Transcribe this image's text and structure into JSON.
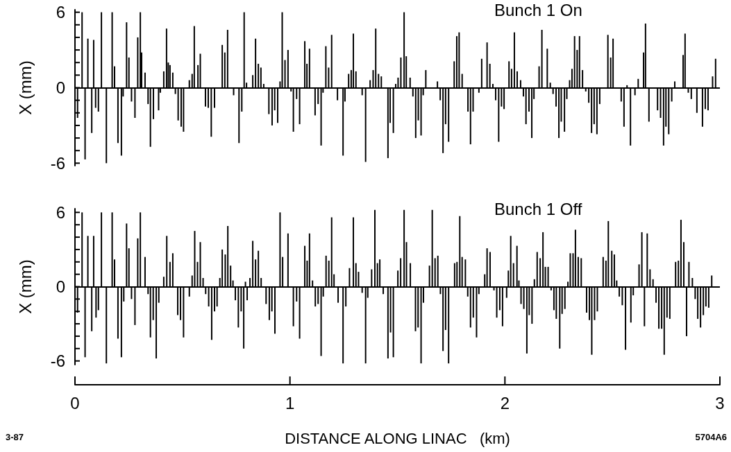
{
  "chart_data": [
    {
      "type": "bar",
      "title": "Bunch 1 On",
      "ylabel": "X (mm)",
      "color": "#000000",
      "tick_labels": "y",
      "xlim": [
        0,
        3
      ],
      "ylim": [
        -6.2,
        6.2
      ],
      "yticks": [
        -6,
        {
          "value": -5,
          "label": null
        },
        {
          "value": -4,
          "label": null
        },
        {
          "value": -3,
          "label": null
        },
        {
          "value": -2,
          "label": null
        },
        {
          "value": -1,
          "label": null
        },
        0,
        {
          "value": 1,
          "label": null
        },
        {
          "value": 2,
          "label": null
        },
        {
          "value": 3,
          "label": null
        },
        {
          "value": 4,
          "label": null
        },
        {
          "value": 5,
          "label": null
        },
        6
      ],
      "ref_lines": [
        {
          "axis": "y",
          "value": 0
        }
      ],
      "x": [
        0.012,
        0.033,
        0.047,
        0.06,
        0.078,
        0.087,
        0.096,
        0.109,
        0.123,
        0.146,
        0.173,
        0.184,
        0.2,
        0.216,
        0.224,
        0.24,
        0.251,
        0.263,
        0.279,
        0.292,
        0.304,
        0.31,
        0.326,
        0.34,
        0.351,
        0.365,
        0.389,
        0.397,
        0.413,
        0.426,
        0.434,
        0.442,
        0.455,
        0.467,
        0.48,
        0.494,
        0.505,
        0.532,
        0.545,
        0.555,
        0.572,
        0.583,
        0.607,
        0.62,
        0.634,
        0.649,
        0.685,
        0.697,
        0.71,
        0.738,
        0.763,
        0.776,
        0.787,
        0.798,
        0.827,
        0.84,
        0.853,
        0.865,
        0.878,
        0.902,
        0.917,
        0.929,
        0.943,
        0.954,
        0.964,
        0.977,
        0.991,
        1.005,
        1.016,
        1.031,
        1.045,
        1.069,
        1.079,
        1.091,
        1.117,
        1.131,
        1.145,
        1.154,
        1.167,
        1.18,
        1.194,
        1.221,
        1.247,
        1.256,
        1.273,
        1.285,
        1.295,
        1.307,
        1.336,
        1.352,
        1.373,
        1.387,
        1.399,
        1.412,
        1.425,
        1.456,
        1.466,
        1.481,
        1.492,
        1.503,
        1.516,
        1.531,
        1.541,
        1.559,
        1.572,
        1.585,
        1.597,
        1.61,
        1.62,
        1.632,
        1.686,
        1.699,
        1.712,
        1.724,
        1.738,
        1.764,
        1.776,
        1.787,
        1.801,
        1.828,
        1.84,
        1.852,
        1.879,
        1.892,
        1.917,
        1.93,
        1.944,
        1.957,
        1.971,
        1.984,
        1.996,
        2.019,
        2.031,
        2.044,
        2.057,
        2.073,
        2.086,
        2.098,
        2.112,
        2.125,
        2.135,
        2.159,
        2.172,
        2.197,
        2.211,
        2.224,
        2.238,
        2.251,
        2.262,
        2.277,
        2.288,
        2.301,
        2.312,
        2.324,
        2.336,
        2.347,
        2.361,
        2.376,
        2.39,
        2.403,
        2.415,
        2.428,
        2.441,
        2.479,
        2.492,
        2.503,
        2.541,
        2.554,
        2.568,
        2.584,
        2.605,
        2.62,
        2.645,
        2.654,
        2.67,
        2.71,
        2.724,
        2.738,
        2.749,
        2.762,
        2.776,
        2.79,
        2.829,
        2.838,
        2.853,
        2.867,
        2.893,
        2.919,
        2.932,
        2.945,
        2.966,
        2.98
      ],
      "values": [
        -2.4,
        6,
        -5.7,
        3.9,
        -3.6,
        3.8,
        -1.6,
        -1.9,
        6,
        -6,
        6,
        1.7,
        -4.4,
        -5.4,
        -0.7,
        5.2,
        2.4,
        -1.1,
        -2.4,
        4,
        6,
        2.8,
        1.2,
        -1.3,
        -4.7,
        -2.5,
        -1.8,
        -0.4,
        1.3,
        4.7,
        2,
        1.8,
        1.2,
        -0.5,
        -2.6,
        -3.1,
        -3.5,
        0.6,
        1.1,
        4.9,
        1.8,
        2.7,
        -1.5,
        -1.6,
        -3.9,
        -1.6,
        3.4,
        2.8,
        4.6,
        -0.6,
        -4.4,
        -1.9,
        6,
        0.4,
        1,
        3.9,
        1.9,
        1.6,
        0.3,
        -2.1,
        -3,
        -1.8,
        -2.8,
        0.5,
        6,
        2.2,
        3,
        -0.3,
        -3.5,
        -0.9,
        -2.9,
        3.7,
        1.9,
        3.1,
        -2.2,
        -1.3,
        -4.6,
        -0.4,
        3.3,
        1.6,
        4.2,
        -1,
        -5.4,
        -1.1,
        1.1,
        1.4,
        4.3,
        1.3,
        -0.6,
        -5.9,
        0.6,
        1.4,
        4.7,
        1.1,
        0.9,
        -5.6,
        -2.8,
        -3.6,
        0.3,
        0.8,
        2.4,
        6,
        2.5,
        0.8,
        -0.7,
        -4,
        -2.6,
        -3.8,
        -0.6,
        1.4,
        0.5,
        -1,
        -5.2,
        -2.9,
        -4.3,
        2.1,
        4.1,
        4.4,
        1.1,
        -1.9,
        -4.5,
        -1.9,
        -0.4,
        2.3,
        3.6,
        1.9,
        0.3,
        -1,
        -4.3,
        -1.5,
        -1.7,
        2.1,
        1.5,
        4.4,
        1.3,
        0.6,
        -0.7,
        -2.9,
        -1.9,
        -4,
        -0.9,
        1.7,
        4.6,
        3.1,
        0.4,
        -0.5,
        -1.5,
        -4,
        -2.7,
        -3.5,
        -0.9,
        0.6,
        1.5,
        4.1,
        3,
        4.1,
        1.4,
        -0.3,
        -1.2,
        -3.6,
        -2.9,
        -3.7,
        -1.3,
        4.2,
        2.4,
        3.9,
        -1.1,
        -3.1,
        0.2,
        -4.6,
        -0.6,
        0.7,
        2.8,
        5.1,
        -2.7,
        -1.8,
        -2.4,
        -4.6,
        -3.1,
        -3.7,
        -1.1,
        0.5,
        2.6,
        4.3,
        -0.4,
        -0.9,
        -2,
        -3.1,
        -1.7,
        -1.8,
        0.9,
        2.3
      ]
    },
    {
      "type": "bar",
      "title": "Bunch 1 Off",
      "ylabel": "X (mm)",
      "xlabel": "DISTANCE ALONG LINAC   (km)",
      "color": "#000000",
      "xlim": [
        0,
        3
      ],
      "xticks": [
        0,
        1,
        2,
        3
      ],
      "ylim": [
        -6.3,
        6.3
      ],
      "yticks": [
        -6,
        {
          "value": -5,
          "label": null
        },
        {
          "value": -4,
          "label": null
        },
        {
          "value": -3,
          "label": null
        },
        {
          "value": -2,
          "label": null
        },
        {
          "value": -1,
          "label": null
        },
        0,
        {
          "value": 1,
          "label": null
        },
        {
          "value": 2,
          "label": null
        },
        {
          "value": 3,
          "label": null
        },
        {
          "value": 4,
          "label": null
        },
        {
          "value": 5,
          "label": null
        },
        6
      ],
      "ref_lines": [
        {
          "axis": "y",
          "value": 0
        }
      ],
      "annotations": [
        "3-87",
        "5704A6"
      ],
      "x": [
        0.012,
        0.033,
        0.047,
        0.06,
        0.078,
        0.087,
        0.098,
        0.109,
        0.123,
        0.146,
        0.173,
        0.184,
        0.2,
        0.216,
        0.227,
        0.24,
        0.251,
        0.263,
        0.279,
        0.292,
        0.304,
        0.326,
        0.34,
        0.351,
        0.364,
        0.378,
        0.39,
        0.413,
        0.427,
        0.442,
        0.455,
        0.478,
        0.491,
        0.505,
        0.532,
        0.545,
        0.557,
        0.57,
        0.583,
        0.596,
        0.608,
        0.622,
        0.636,
        0.649,
        0.661,
        0.674,
        0.685,
        0.699,
        0.711,
        0.724,
        0.735,
        0.746,
        0.76,
        0.773,
        0.785,
        0.793,
        0.801,
        0.814,
        0.827,
        0.84,
        0.853,
        0.866,
        0.889,
        0.904,
        0.916,
        0.93,
        0.942,
        0.954,
        0.966,
        0.991,
        1.016,
        1.031,
        1.045,
        1.069,
        1.08,
        1.091,
        1.105,
        1.118,
        1.131,
        1.145,
        1.155,
        1.168,
        1.181,
        1.194,
        1.205,
        1.224,
        1.247,
        1.26,
        1.277,
        1.295,
        1.307,
        1.319,
        1.336,
        1.352,
        1.362,
        1.38,
        1.395,
        1.407,
        1.418,
        1.434,
        1.456,
        1.468,
        1.481,
        1.502,
        1.515,
        1.531,
        1.542,
        1.56,
        1.584,
        1.596,
        1.61,
        1.621,
        1.649,
        1.662,
        1.675,
        1.688,
        1.7,
        1.712,
        1.724,
        1.738,
        1.766,
        1.777,
        1.79,
        1.801,
        1.816,
        1.827,
        1.84,
        1.853,
        1.868,
        1.879,
        1.906,
        1.917,
        1.931,
        1.949,
        1.962,
        1.976,
        1.989,
        2.008,
        2.016,
        2.027,
        2.04,
        2.056,
        2.065,
        2.075,
        2.088,
        2.102,
        2.113,
        2.126,
        2.137,
        2.15,
        2.164,
        2.177,
        2.188,
        2.201,
        2.215,
        2.228,
        2.239,
        2.255,
        2.266,
        2.279,
        2.293,
        2.304,
        2.317,
        2.328,
        2.341,
        2.355,
        2.38,
        2.393,
        2.404,
        2.417,
        2.43,
        2.457,
        2.47,
        2.481,
        2.497,
        2.509,
        2.52,
        2.532,
        2.546,
        2.561,
        2.586,
        2.597,
        2.624,
        2.637,
        2.649,
        2.662,
        2.675,
        2.689,
        2.703,
        2.716,
        2.729,
        2.741,
        2.754,
        2.767,
        2.794,
        2.807,
        2.819,
        2.832,
        2.845,
        2.856,
        2.872,
        2.885,
        2.897,
        2.91,
        2.923,
        2.935,
        2.948,
        2.962
      ],
      "values": [
        -2.1,
        6,
        -5.7,
        4.1,
        -3.6,
        4.1,
        -2.5,
        -1.9,
        6,
        -6.2,
        6,
        2.2,
        -4.2,
        -5.7,
        -1.2,
        5.1,
        3.1,
        -1,
        -3.1,
        3.9,
        6,
        2.4,
        -0.6,
        -4.1,
        -2.7,
        -5.8,
        -1.3,
        0.8,
        4.1,
        2,
        2.7,
        -2.3,
        -2.7,
        -4.1,
        -0.8,
        0.9,
        4.5,
        2,
        3.6,
        0.7,
        -0.6,
        -1.6,
        -4.3,
        -2,
        -1.6,
        0.7,
        3,
        2.6,
        4.9,
        1.7,
        0.5,
        -1.1,
        -3.3,
        -2,
        -5,
        0.4,
        -1.1,
        0.7,
        3.7,
        2.2,
        2.9,
        0.7,
        -1.4,
        -2.7,
        -2,
        -3.8,
        null,
        6,
        2.4,
        4.3,
        -3.2,
        -1.2,
        -4.2,
        3.3,
        2.1,
        4.3,
        0.5,
        -1.6,
        -1.4,
        -5.6,
        -0.8,
        2.5,
        2.1,
        5.6,
        1,
        -1.3,
        -6.2,
        -1.6,
        1.5,
        5.6,
        1.9,
        1.2,
        -0.5,
        -6.2,
        -0.9,
        1.4,
        6.2,
        1.9,
        2.2,
        -0.6,
        -5.8,
        -3.7,
        -5.7,
        1.3,
        2.3,
        6.2,
        3.6,
        1.9,
        -3.6,
        -3.3,
        -6.2,
        -1.3,
        1.7,
        6.2,
        2.3,
        2.5,
        -0.6,
        -5.2,
        -3.5,
        -6.2,
        1.9,
        2,
        5.7,
        2.4,
        2.2,
        -0.8,
        -3.3,
        -2.5,
        -4.1,
        -0.6,
        1,
        3.1,
        2.8,
        -0.3,
        -2.5,
        -1.9,
        -3.2,
        -0.9,
        1.3,
        4.1,
        1.9,
        3.3,
        0.5,
        -1.4,
        -1.8,
        -5.4,
        -2.3,
        -3,
        0.6,
        2.8,
        2.3,
        4.4,
        1.6,
        1.6,
        -0.3,
        -1.9,
        -2.6,
        -5,
        -2.2,
        -1.8,
        0.4,
        2.7,
        2.7,
        4.6,
        2.4,
        2.3,
        -2.1,
        -2.7,
        -5.5,
        -2.7,
        -2,
        2.4,
        2.1,
        5.3,
        2.9,
        2.6,
        0.5,
        -0.8,
        -1.5,
        -5.1,
        -2.9,
        -0.7,
        1.8,
        4.4,
        -3.2,
        4.3,
        1.4,
        0.6,
        -1.3,
        -3.4,
        -3.4,
        -5.5,
        -2.5,
        -2.6,
        2,
        2.1,
        5.4,
        3.6,
        -4,
        2,
        0.7,
        -1,
        -2.6,
        -3.3,
        -2.3,
        -1.6,
        -1.7,
        0.9
      ]
    }
  ]
}
